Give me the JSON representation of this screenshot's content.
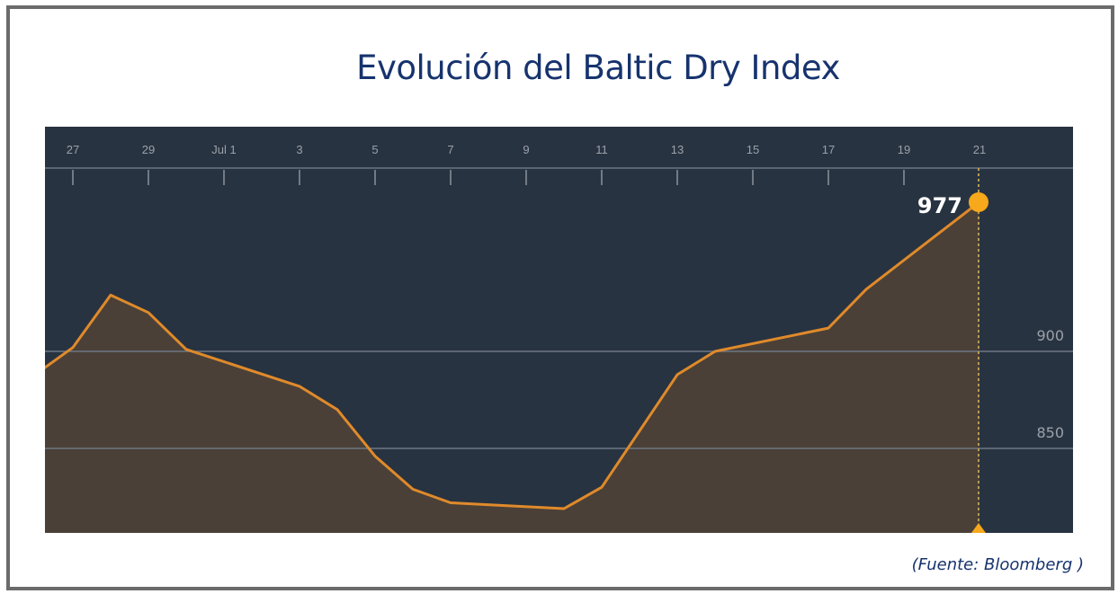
{
  "title": "Evolución del Baltic Dry Index",
  "source": "(Fuente: Bloomberg )",
  "colors": {
    "background": "#283341",
    "line": "#e08a2a",
    "area": "#4a4038",
    "marker": "#f7a81b",
    "title": "#17336e",
    "grid": "#6e7784"
  },
  "chart_data": {
    "type": "area",
    "title": "Evolución del Baltic Dry Index",
    "xlabel": "",
    "ylabel": "",
    "x_tick_labels": [
      "27",
      "29",
      "Jul 1",
      "3",
      "5",
      "7",
      "9",
      "11",
      "13",
      "15",
      "17",
      "19",
      "21"
    ],
    "y_tick_labels": [
      "850",
      "900"
    ],
    "ylim": [
      807,
      1013
    ],
    "grid": "horizontal at 850 and 900",
    "highlight": {
      "label": "977",
      "x": "Jul 21",
      "value": 977
    },
    "x": [
      "Jun 26",
      "Jun 27",
      "Jun 28",
      "Jun 29",
      "Jun 30",
      "Jul 3",
      "Jul 4",
      "Jul 5",
      "Jul 6",
      "Jul 7",
      "Jul 10",
      "Jul 11",
      "Jul 13",
      "Jul 14",
      "Jul 17",
      "Jul 18",
      "Jul 20",
      "Jul 21"
    ],
    "values": [
      888,
      902,
      929,
      920,
      901,
      882,
      870,
      846,
      829,
      822,
      819,
      830,
      888,
      900,
      912,
      932,
      962,
      977
    ]
  }
}
